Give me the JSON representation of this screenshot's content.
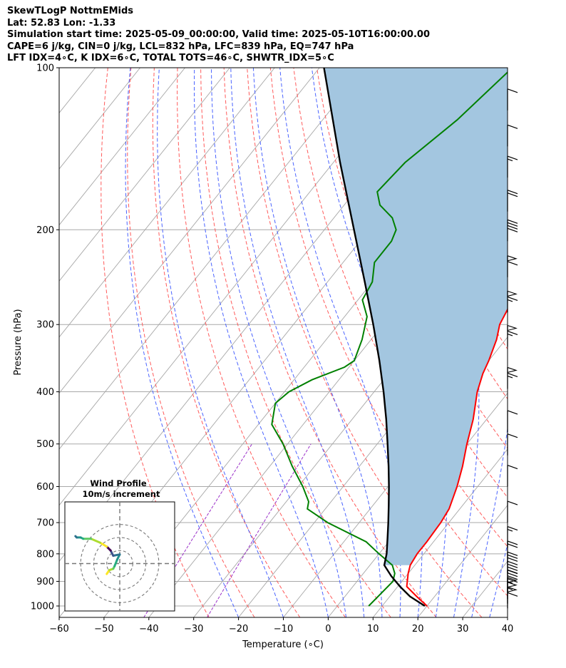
{
  "header": {
    "title": "SkewTLogP NottmEMids",
    "latlon": "Lat: 52.83   Lon: -1.33",
    "times": "Simulation start time: 2025-05-09_00:00:00, Valid time: 2025-05-10T16:00:00.00",
    "params": "CAPE=6 j/kg, CIN=0 j/kg, LCL=832 hPa, LFC=839 hPa, EQ=747 hPa",
    "indices": "LFT IDX=4∘C, K IDX=6∘C, TOTAL TOTS=46∘C, SHWTR_IDX=5∘C"
  },
  "colors": {
    "temperature": "#ff0000",
    "dewpoint": "#008000",
    "parcel": "#000000",
    "cape_fill": "#a3c6e0",
    "dry_adiabat": "#ff5a5a",
    "moist_adiabat": "#4a63ff",
    "mixing_ratio": "#9a30c8",
    "isotherm": "#a8a8a8"
  },
  "chart_data": {
    "type": "skewt",
    "xlabel": "Temperature (∘C)",
    "ylabel": "Pressure (hPa)",
    "xlim": [
      -60,
      40
    ],
    "ylim": [
      1050,
      100
    ],
    "x_ticks": [
      "−60",
      "−50",
      "−40",
      "−30",
      "−20",
      "−10",
      "0",
      "10",
      "20",
      "30",
      "40"
    ],
    "x_tick_values": [
      -60,
      -50,
      -40,
      -30,
      -20,
      -10,
      0,
      10,
      20,
      30,
      40
    ],
    "y_ticks": [
      "100",
      "200",
      "300",
      "400",
      "500",
      "600",
      "700",
      "800",
      "900",
      "1000"
    ],
    "y_tick_values": [
      100,
      200,
      300,
      400,
      500,
      600,
      700,
      800,
      900,
      1000
    ],
    "temperature_profile": [
      [
        1000,
        20
      ],
      [
        960,
        16
      ],
      [
        920,
        12
      ],
      [
        870,
        10
      ],
      [
        840,
        9
      ],
      [
        800,
        8.5
      ],
      [
        760,
        8.5
      ],
      [
        700,
        8.2
      ],
      [
        660,
        7.6
      ],
      [
        600,
        5.4
      ],
      [
        550,
        3
      ],
      [
        500,
        0
      ],
      [
        450,
        -3
      ],
      [
        400,
        -7
      ],
      [
        370,
        -9
      ],
      [
        350,
        -10
      ],
      [
        320,
        -12
      ],
      [
        300,
        -14
      ],
      [
        280,
        -15
      ],
      [
        260,
        -17
      ],
      [
        250,
        -19
      ],
      [
        230,
        -19
      ],
      [
        210,
        -18
      ],
      [
        200,
        -18
      ],
      [
        180,
        -18
      ],
      [
        170,
        -17.5
      ],
      [
        150,
        -19
      ],
      [
        140,
        -20
      ],
      [
        125,
        -24
      ],
      [
        115,
        -25
      ],
      [
        100,
        -31
      ]
    ],
    "dewpoint_profile": [
      [
        1000,
        7
      ],
      [
        950,
        7.5
      ],
      [
        900,
        8
      ],
      [
        870,
        7
      ],
      [
        840,
        5
      ],
      [
        800,
        0
      ],
      [
        760,
        -5
      ],
      [
        700,
        -17
      ],
      [
        660,
        -24
      ],
      [
        640,
        -25
      ],
      [
        600,
        -29
      ],
      [
        550,
        -35
      ],
      [
        500,
        -41
      ],
      [
        460,
        -47
      ],
      [
        420,
        -50
      ],
      [
        400,
        -49
      ],
      [
        380,
        -46
      ],
      [
        360,
        -41
      ],
      [
        350,
        -40
      ],
      [
        320,
        -42
      ],
      [
        290,
        -45
      ],
      [
        270,
        -49
      ],
      [
        250,
        -50
      ],
      [
        230,
        -53
      ],
      [
        210,
        -53
      ],
      [
        200,
        -54
      ],
      [
        190,
        -57
      ],
      [
        180,
        -62
      ],
      [
        170,
        -65
      ],
      [
        150,
        -64
      ],
      [
        125,
        -60
      ],
      [
        100,
        -57
      ]
    ],
    "parcel_profile": [
      [
        1000,
        19.5
      ],
      [
        960,
        14.5
      ],
      [
        920,
        10.5
      ],
      [
        880,
        6.7
      ],
      [
        840,
        3.2
      ],
      [
        800,
        1.7
      ],
      [
        750,
        -0.8
      ],
      [
        700,
        -3.5
      ],
      [
        650,
        -6.5
      ],
      [
        600,
        -9.8
      ],
      [
        550,
        -13.5
      ],
      [
        500,
        -17.7
      ],
      [
        450,
        -22.4
      ],
      [
        400,
        -27.9
      ],
      [
        350,
        -34.4
      ],
      [
        300,
        -42.2
      ],
      [
        250,
        -51.7
      ],
      [
        200,
        -63.4
      ],
      [
        150,
        -78.5
      ],
      [
        100,
        -99
      ]
    ],
    "wind_barbs": [
      {
        "p": 1010,
        "speed_kt": 60
      },
      {
        "p": 990,
        "speed_kt": 55
      },
      {
        "p": 970,
        "speed_kt": 50
      },
      {
        "p": 940,
        "speed_kt": 45
      },
      {
        "p": 905,
        "speed_kt": 40
      },
      {
        "p": 870,
        "speed_kt": 30
      },
      {
        "p": 830,
        "speed_kt": 20
      },
      {
        "p": 780,
        "speed_kt": 15
      },
      {
        "p": 700,
        "speed_kt": 10
      },
      {
        "p": 600,
        "speed_kt": 10
      },
      {
        "p": 525,
        "speed_kt": 10
      },
      {
        "p": 475,
        "speed_kt": 10
      },
      {
        "p": 395,
        "speed_kt": 65
      },
      {
        "p": 330,
        "speed_kt": 65
      },
      {
        "p": 285,
        "speed_kt": 65
      },
      {
        "p": 245,
        "speed_kt": 60
      },
      {
        "p": 210,
        "speed_kt": 40
      },
      {
        "p": 185,
        "speed_kt": 20
      },
      {
        "p": 160,
        "speed_kt": 15
      },
      {
        "p": 140,
        "speed_kt": 10
      },
      {
        "p": 120,
        "speed_kt": 10
      }
    ],
    "hodograph": {
      "title": "Wind Profile",
      "subtitle": "10m/s increment",
      "rings_ms": [
        10,
        20,
        30
      ],
      "range_ms": [
        -40,
        40
      ],
      "points": [
        [
          -10,
          -8
        ],
        [
          -8,
          -5
        ],
        [
          -5,
          -4
        ],
        [
          -4,
          -2
        ],
        [
          -2,
          3
        ],
        [
          0,
          7
        ],
        [
          -5,
          6
        ],
        [
          -7,
          10
        ],
        [
          -10,
          13
        ],
        [
          -15,
          16
        ],
        [
          -22,
          19
        ],
        [
          -28,
          19
        ],
        [
          -30,
          20
        ],
        [
          -33,
          20
        ],
        [
          -34,
          21
        ]
      ]
    }
  }
}
